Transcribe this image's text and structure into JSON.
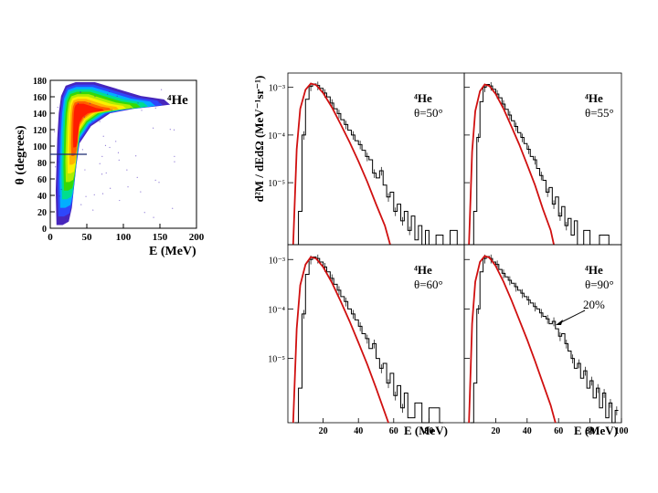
{
  "chart_data": [
    {
      "type": "heatmap",
      "xlabel": "E (MeV)",
      "ylabel": "θ (degrees)",
      "particle_label": "⁴He",
      "x_ticks": [
        0,
        50,
        100,
        150,
        200
      ],
      "y_ticks": [
        0,
        20,
        40,
        60,
        80,
        100,
        120,
        140,
        160,
        180
      ],
      "xlim": [
        0,
        200
      ],
      "ylim": [
        0,
        180
      ],
      "cut_line_theta": 90,
      "color_scale": [
        "#3d1ab8",
        "#2d49ff",
        "#00b4ff",
        "#00e08a",
        "#38d800",
        "#b6ee00",
        "#fff000",
        "#ffb000",
        "#ff5a00",
        "#ff1800"
      ]
    },
    {
      "type": "line",
      "ylabel": "d²M / dEdΩ (MeV⁻¹sr⁻¹)",
      "xlabel": "E (MeV)",
      "x_ticks": [
        20,
        40,
        60,
        80,
        100
      ],
      "xlim": [
        0,
        100
      ],
      "y_tick_labels": [
        "10⁻³",
        "10⁻⁴",
        "10⁻⁵"
      ],
      "y_tick_values": [
        -3,
        -4,
        -5
      ],
      "ylim_log10": [
        -6.3,
        -2.7
      ],
      "curve_color": "#d01010",
      "data_color": "#000000",
      "panels": [
        {
          "particle": "⁴He",
          "angle": "θ=50°",
          "histogram": [
            [
              4,
              -6.3
            ],
            [
              6,
              -5.6
            ],
            [
              8,
              -4.0
            ],
            [
              10,
              -3.25
            ],
            [
              12,
              -2.98
            ],
            [
              14,
              -2.93
            ],
            [
              16,
              -2.96
            ],
            [
              18,
              -3.02
            ],
            [
              20,
              -3.12
            ],
            [
              22,
              -3.2
            ],
            [
              24,
              -3.33
            ],
            [
              26,
              -3.45
            ],
            [
              28,
              -3.55
            ],
            [
              30,
              -3.68
            ],
            [
              32,
              -3.78
            ],
            [
              34,
              -3.9
            ],
            [
              36,
              -4.0
            ],
            [
              38,
              -4.12
            ],
            [
              40,
              -4.2
            ],
            [
              42,
              -4.32
            ],
            [
              44,
              -4.45
            ],
            [
              46,
              -4.52
            ],
            [
              48,
              -4.8
            ],
            [
              50,
              -4.9
            ],
            [
              52,
              -4.75
            ],
            [
              54,
              -5.05
            ],
            [
              56,
              -5.3
            ],
            [
              58,
              -5.2
            ],
            [
              60,
              -5.6
            ],
            [
              62,
              -5.45
            ],
            [
              64,
              -5.8
            ],
            [
              66,
              -5.6
            ],
            [
              68,
              -6.0
            ],
            [
              70,
              -5.7
            ],
            [
              72,
              -6.2
            ],
            [
              74,
              -5.9
            ],
            [
              76,
              -6.3
            ],
            [
              78,
              -6.0
            ],
            [
              80,
              -6.3
            ],
            [
              84,
              -6.1
            ],
            [
              88,
              -6.3
            ],
            [
              92,
              -6.0
            ],
            [
              96,
              -6.3
            ]
          ],
          "curve": [
            [
              3,
              -6.3
            ],
            [
              5,
              -4.3
            ],
            [
              7,
              -3.45
            ],
            [
              10,
              -3.05
            ],
            [
              13,
              -2.92
            ],
            [
              16,
              -2.95
            ],
            [
              20,
              -3.12
            ],
            [
              25,
              -3.42
            ],
            [
              30,
              -3.78
            ],
            [
              35,
              -4.15
            ],
            [
              40,
              -4.55
            ],
            [
              45,
              -4.98
            ],
            [
              50,
              -5.45
            ],
            [
              55,
              -5.9
            ],
            [
              58,
              -6.3
            ]
          ]
        },
        {
          "particle": "⁴He",
          "angle": "θ=55°",
          "histogram": [
            [
              4,
              -6.3
            ],
            [
              6,
              -5.6
            ],
            [
              8,
              -4.05
            ],
            [
              10,
              -3.3
            ],
            [
              12,
              -3.0
            ],
            [
              14,
              -2.94
            ],
            [
              16,
              -2.97
            ],
            [
              18,
              -3.04
            ],
            [
              20,
              -3.14
            ],
            [
              22,
              -3.22
            ],
            [
              24,
              -3.35
            ],
            [
              26,
              -3.46
            ],
            [
              28,
              -3.58
            ],
            [
              30,
              -3.7
            ],
            [
              32,
              -3.82
            ],
            [
              34,
              -3.95
            ],
            [
              36,
              -4.05
            ],
            [
              38,
              -4.18
            ],
            [
              40,
              -4.3
            ],
            [
              42,
              -4.45
            ],
            [
              44,
              -4.52
            ],
            [
              46,
              -4.7
            ],
            [
              48,
              -4.85
            ],
            [
              50,
              -4.95
            ],
            [
              52,
              -5.2
            ],
            [
              54,
              -5.1
            ],
            [
              56,
              -5.45
            ],
            [
              58,
              -5.3
            ],
            [
              60,
              -5.7
            ],
            [
              62,
              -5.5
            ],
            [
              64,
              -5.9
            ],
            [
              66,
              -5.75
            ],
            [
              68,
              -6.1
            ],
            [
              70,
              -5.8
            ],
            [
              72,
              -6.3
            ],
            [
              76,
              -6.0
            ],
            [
              80,
              -6.3
            ],
            [
              86,
              -6.1
            ],
            [
              92,
              -6.3
            ]
          ],
          "curve": [
            [
              3,
              -6.3
            ],
            [
              5,
              -4.35
            ],
            [
              7,
              -3.5
            ],
            [
              10,
              -3.08
            ],
            [
              13,
              -2.94
            ],
            [
              16,
              -2.97
            ],
            [
              20,
              -3.14
            ],
            [
              25,
              -3.45
            ],
            [
              30,
              -3.82
            ],
            [
              35,
              -4.2
            ],
            [
              40,
              -4.62
            ],
            [
              45,
              -5.05
            ],
            [
              50,
              -5.55
            ],
            [
              55,
              -6.0
            ],
            [
              57,
              -6.3
            ]
          ]
        },
        {
          "particle": "⁴He",
          "angle": "θ=60°",
          "histogram": [
            [
              4,
              -6.3
            ],
            [
              6,
              -5.6
            ],
            [
              8,
              -4.1
            ],
            [
              10,
              -3.3
            ],
            [
              12,
              -3.0
            ],
            [
              14,
              -2.95
            ],
            [
              16,
              -2.98
            ],
            [
              18,
              -3.05
            ],
            [
              20,
              -3.15
            ],
            [
              22,
              -3.25
            ],
            [
              24,
              -3.38
            ],
            [
              26,
              -3.5
            ],
            [
              28,
              -3.62
            ],
            [
              30,
              -3.75
            ],
            [
              32,
              -3.85
            ],
            [
              34,
              -4.0
            ],
            [
              36,
              -4.1
            ],
            [
              38,
              -4.22
            ],
            [
              40,
              -4.35
            ],
            [
              42,
              -4.5
            ],
            [
              44,
              -4.6
            ],
            [
              46,
              -4.8
            ],
            [
              48,
              -4.7
            ],
            [
              50,
              -5.0
            ],
            [
              52,
              -5.2
            ],
            [
              54,
              -5.1
            ],
            [
              56,
              -5.5
            ],
            [
              58,
              -5.3
            ],
            [
              60,
              -5.75
            ],
            [
              62,
              -5.55
            ],
            [
              64,
              -6.0
            ],
            [
              66,
              -5.7
            ],
            [
              68,
              -6.2
            ],
            [
              72,
              -5.9
            ],
            [
              76,
              -6.3
            ],
            [
              80,
              -6.0
            ],
            [
              86,
              -6.3
            ]
          ],
          "curve": [
            [
              3,
              -6.3
            ],
            [
              5,
              -4.4
            ],
            [
              7,
              -3.52
            ],
            [
              10,
              -3.1
            ],
            [
              13,
              -2.95
            ],
            [
              16,
              -2.98
            ],
            [
              20,
              -3.15
            ],
            [
              25,
              -3.47
            ],
            [
              30,
              -3.85
            ],
            [
              35,
              -4.25
            ],
            [
              40,
              -4.68
            ],
            [
              45,
              -5.12
            ],
            [
              50,
              -5.6
            ],
            [
              55,
              -6.1
            ],
            [
              57,
              -6.3
            ]
          ]
        },
        {
          "particle": "⁴He",
          "angle": "θ=90°",
          "annotation": "20%",
          "histogram": [
            [
              4,
              -6.3
            ],
            [
              6,
              -5.5
            ],
            [
              8,
              -4.0
            ],
            [
              10,
              -3.25
            ],
            [
              12,
              -2.98
            ],
            [
              14,
              -2.94
            ],
            [
              16,
              -2.98
            ],
            [
              18,
              -3.05
            ],
            [
              20,
              -3.1
            ],
            [
              22,
              -3.2
            ],
            [
              24,
              -3.28
            ],
            [
              26,
              -3.35
            ],
            [
              28,
              -3.42
            ],
            [
              30,
              -3.48
            ],
            [
              32,
              -3.55
            ],
            [
              34,
              -3.62
            ],
            [
              36,
              -3.68
            ],
            [
              38,
              -3.75
            ],
            [
              40,
              -3.82
            ],
            [
              42,
              -3.88
            ],
            [
              44,
              -3.95
            ],
            [
              46,
              -4.0
            ],
            [
              48,
              -4.08
            ],
            [
              50,
              -4.15
            ],
            [
              52,
              -4.2
            ],
            [
              54,
              -4.3
            ],
            [
              56,
              -4.25
            ],
            [
              58,
              -4.4
            ],
            [
              60,
              -4.55
            ],
            [
              62,
              -4.5
            ],
            [
              64,
              -4.7
            ],
            [
              66,
              -4.85
            ],
            [
              68,
              -5.0
            ],
            [
              70,
              -5.2
            ],
            [
              72,
              -5.1
            ],
            [
              74,
              -5.4
            ],
            [
              76,
              -5.25
            ],
            [
              78,
              -5.6
            ],
            [
              80,
              -5.45
            ],
            [
              82,
              -5.8
            ],
            [
              84,
              -5.6
            ],
            [
              86,
              -6.0
            ],
            [
              88,
              -5.7
            ],
            [
              90,
              -6.2
            ],
            [
              92,
              -5.9
            ],
            [
              94,
              -6.3
            ],
            [
              96,
              -6.05
            ]
          ],
          "curve": [
            [
              3,
              -6.3
            ],
            [
              5,
              -4.3
            ],
            [
              7,
              -3.45
            ],
            [
              10,
              -3.05
            ],
            [
              13,
              -2.93
            ],
            [
              16,
              -2.96
            ],
            [
              20,
              -3.13
            ],
            [
              25,
              -3.45
            ],
            [
              30,
              -3.82
            ],
            [
              35,
              -4.22
            ],
            [
              40,
              -4.62
            ],
            [
              45,
              -5.05
            ],
            [
              50,
              -5.5
            ],
            [
              55,
              -5.95
            ],
            [
              58,
              -6.3
            ]
          ]
        }
      ]
    }
  ]
}
